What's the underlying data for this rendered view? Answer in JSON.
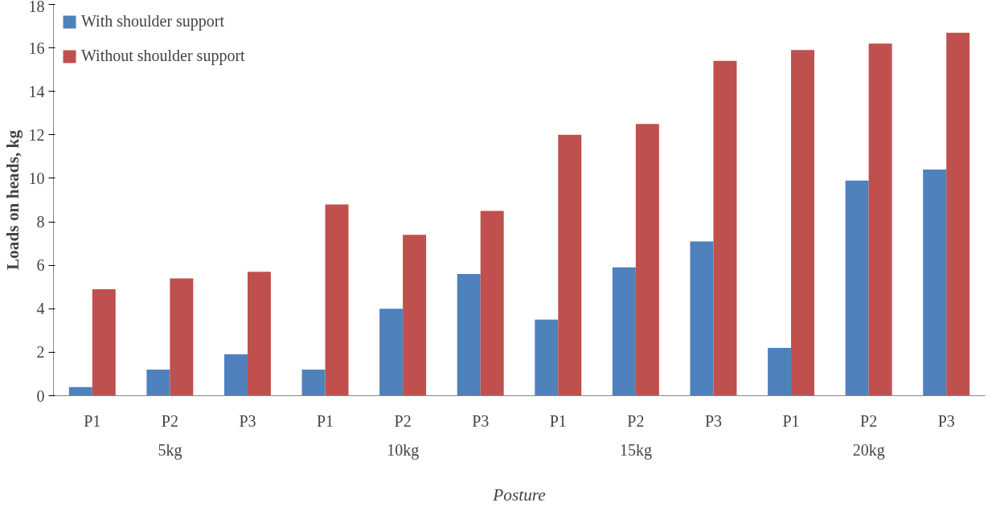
{
  "chart_data": {
    "type": "bar",
    "xlabel": "Posture",
    "ylabel": "Loads on heads, kg",
    "categories": [
      "P1",
      "P2",
      "P3",
      "P1",
      "P2",
      "P3",
      "P1",
      "P2",
      "P3",
      "P1",
      "P2",
      "P3"
    ],
    "series": [
      {
        "name": "With shoulder support",
        "color": "#4f81bd",
        "values": [
          0.4,
          1.2,
          1.9,
          1.2,
          4.0,
          5.6,
          3.5,
          5.9,
          7.1,
          2.2,
          9.9,
          10.4
        ]
      },
      {
        "name": "Without shoulder support",
        "color": "#c0504d",
        "values": [
          4.9,
          5.4,
          5.7,
          8.8,
          7.4,
          8.5,
          12.0,
          12.5,
          15.4,
          15.9,
          16.2,
          16.7
        ]
      }
    ],
    "annotations": [
      "5kg",
      "10kg",
      "15kg",
      "20kg"
    ],
    "ylim": [
      0,
      18
    ],
    "yticks": [
      0,
      2,
      4,
      6,
      8,
      10,
      12,
      14,
      16,
      18
    ],
    "grid": false,
    "legend": "top left"
  }
}
